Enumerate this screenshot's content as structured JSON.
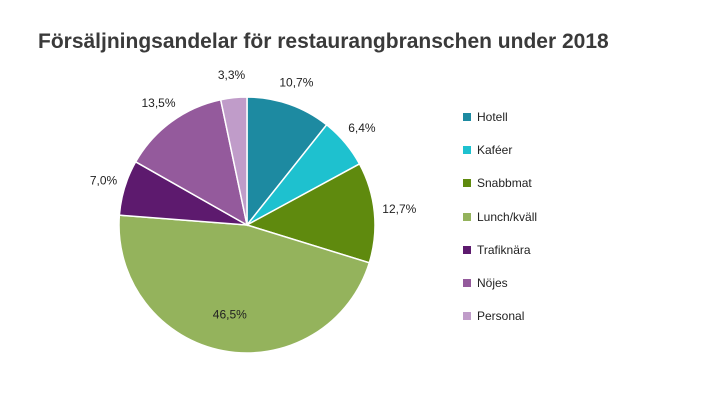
{
  "chart_data": {
    "type": "pie",
    "title": "Försäljningsandelar för restaurangbranschen under 2018",
    "categories": [
      "Hotell",
      "Kaféer",
      "Snabbmat",
      "Lunch/kväll",
      "Trafiknära",
      "Nöjes",
      "Personal"
    ],
    "values": [
      10.7,
      6.4,
      12.7,
      46.5,
      7.0,
      13.5,
      3.3
    ],
    "data_labels": [
      "10,7%",
      "6,4%",
      "12,7%",
      "46,5%",
      "7,0%",
      "13,5%",
      "3,3%"
    ],
    "colors": [
      "#1d8aa1",
      "#1ec1cf",
      "#5f8a0e",
      "#94b35c",
      "#5d1a6e",
      "#945a9c",
      "#c09cc9"
    ],
    "legend_position": "right",
    "start_angle": "top, clockwise"
  }
}
